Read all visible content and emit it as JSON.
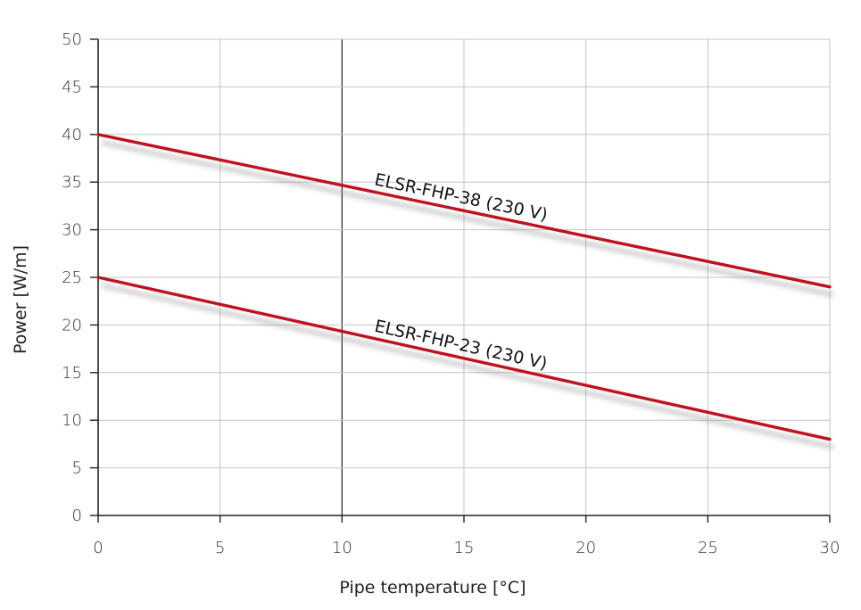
{
  "chart_data": {
    "type": "line",
    "title": "",
    "xlabel": "Pipe temperature [°C]",
    "ylabel": "Power [W/m]",
    "xlim": [
      0,
      30
    ],
    "ylim": [
      0,
      50
    ],
    "xticks": [
      0,
      5,
      10,
      15,
      20,
      25,
      30
    ],
    "yticks": [
      0,
      5,
      10,
      15,
      20,
      25,
      30,
      35,
      40,
      45,
      50
    ],
    "grid": true,
    "highlight_x": 10,
    "series": [
      {
        "name": "ELSR-FHP-38 (230 V)",
        "color": "#c0121e",
        "x": [
          0,
          30
        ],
        "y": [
          40,
          24
        ]
      },
      {
        "name": "ELSR-FHP-23 (230 V)",
        "color": "#c0121e",
        "x": [
          0,
          30
        ],
        "y": [
          25,
          8
        ]
      }
    ]
  }
}
